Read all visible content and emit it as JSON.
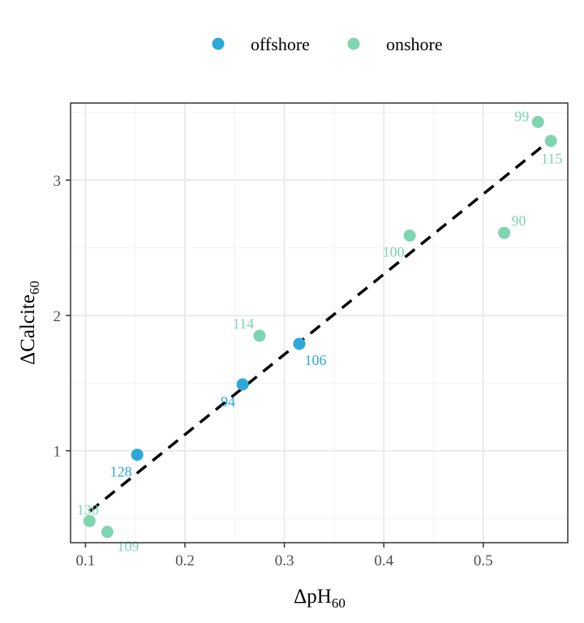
{
  "chart_data": {
    "type": "scatter",
    "xlabel_main": "ΔpH",
    "xlabel_sub": "60",
    "ylabel_main": "ΔCalcite",
    "ylabel_sub": "60",
    "xlim": [
      0.085,
      0.585
    ],
    "ylim": [
      0.32,
      3.57
    ],
    "x_ticks": [
      0.1,
      0.2,
      0.3,
      0.4,
      0.5
    ],
    "x_tick_labels": [
      "0.1",
      "0.2",
      "0.3",
      "0.4",
      "0.5"
    ],
    "y_ticks": [
      1,
      2,
      3
    ],
    "y_tick_labels": [
      "1",
      "2",
      "3"
    ],
    "grid": true,
    "legend_position": "top",
    "legend": [
      {
        "name": "offshore",
        "color": "#2CA9D8"
      },
      {
        "name": "onshore",
        "color": "#7FD4B2"
      }
    ],
    "series": [
      {
        "name": "offshore",
        "color": "#2CA9D8",
        "points": [
          {
            "x": 0.152,
            "y": 0.97,
            "label": "128"
          },
          {
            "x": 0.258,
            "y": 1.49,
            "label": "94"
          },
          {
            "x": 0.315,
            "y": 1.79,
            "label": "106"
          }
        ]
      },
      {
        "name": "onshore",
        "color": "#7FD4B2",
        "points": [
          {
            "x": 0.104,
            "y": 0.48,
            "label": "130"
          },
          {
            "x": 0.122,
            "y": 0.4,
            "label": "109"
          },
          {
            "x": 0.275,
            "y": 1.85,
            "label": "114"
          },
          {
            "x": 0.426,
            "y": 2.59,
            "label": "100"
          },
          {
            "x": 0.521,
            "y": 2.61,
            "label": "90"
          },
          {
            "x": 0.555,
            "y": 3.43,
            "label": "99"
          },
          {
            "x": 0.568,
            "y": 3.29,
            "label": "115"
          }
        ]
      }
    ],
    "trend_line": {
      "style": "dashed",
      "color": "#000000",
      "x": [
        0.104,
        0.568
      ],
      "y": [
        0.55,
        3.3
      ]
    }
  }
}
